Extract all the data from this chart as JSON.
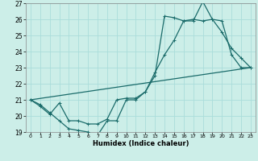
{
  "xlabel": "Humidex (Indice chaleur)",
  "bg_color": "#cceee8",
  "grid_color": "#aaddda",
  "line_color": "#1a6b6a",
  "xlim": [
    -0.5,
    23.5
  ],
  "ylim": [
    19,
    27
  ],
  "yticks": [
    19,
    20,
    21,
    22,
    23,
    24,
    25,
    26,
    27
  ],
  "xticks": [
    0,
    1,
    2,
    3,
    4,
    5,
    6,
    7,
    8,
    9,
    10,
    11,
    12,
    13,
    14,
    15,
    16,
    17,
    18,
    19,
    20,
    21,
    22,
    23
  ],
  "line1_x": [
    0,
    1,
    2,
    3,
    4,
    5,
    6,
    7,
    8,
    9,
    10,
    11,
    12,
    13,
    14,
    15,
    16,
    17,
    18,
    19,
    20,
    21,
    22,
    23
  ],
  "line1_y": [
    21.0,
    20.7,
    20.2,
    19.7,
    19.2,
    19.1,
    19.0,
    18.8,
    19.7,
    19.7,
    21.0,
    21.0,
    21.5,
    22.7,
    23.8,
    24.7,
    25.9,
    25.9,
    27.1,
    26.0,
    25.2,
    24.2,
    23.6,
    23.0
  ],
  "line2_x": [
    0,
    1,
    2,
    3,
    4,
    5,
    6,
    7,
    8,
    9,
    10,
    11,
    12,
    13,
    14,
    15,
    16,
    17,
    18,
    19,
    20,
    21,
    22,
    23
  ],
  "line2_y": [
    21.0,
    20.6,
    20.1,
    20.8,
    19.7,
    19.7,
    19.5,
    19.5,
    19.8,
    21.0,
    21.1,
    21.1,
    21.5,
    22.5,
    26.2,
    26.1,
    25.9,
    26.0,
    25.9,
    26.0,
    25.9,
    23.8,
    23.0,
    23.0
  ],
  "line3_x": [
    0,
    23
  ],
  "line3_y": [
    21.0,
    23.0
  ]
}
